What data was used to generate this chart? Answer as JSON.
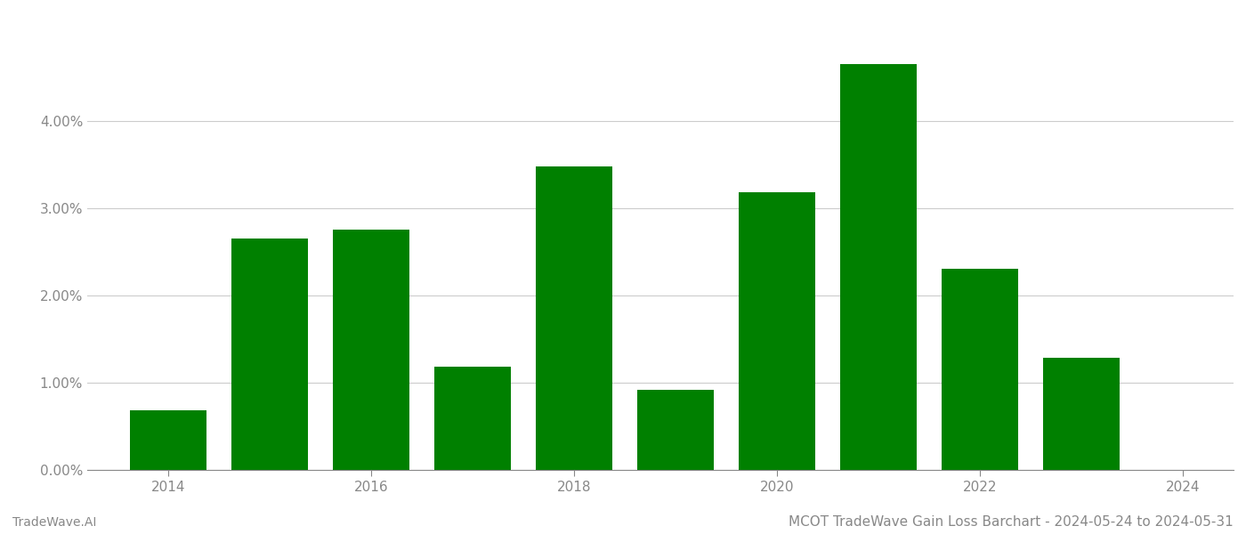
{
  "years": [
    2014,
    2015,
    2016,
    2017,
    2018,
    2019,
    2020,
    2021,
    2022,
    2023
  ],
  "values": [
    0.0068,
    0.0265,
    0.0275,
    0.0118,
    0.0348,
    0.0092,
    0.0318,
    0.0465,
    0.023,
    0.0128
  ],
  "bar_color": "#008000",
  "background_color": "#ffffff",
  "grid_color": "#cccccc",
  "title": "MCOT TradeWave Gain Loss Barchart - 2024-05-24 to 2024-05-31",
  "footer_left": "TradeWave.AI",
  "ylim_min": 0.0,
  "ylim_max": 0.052,
  "bar_width": 0.75,
  "ytick_values": [
    0.0,
    0.01,
    0.02,
    0.03,
    0.04
  ],
  "xtick_labels": [
    "2014",
    "2016",
    "2018",
    "2020",
    "2022",
    "2024"
  ],
  "xtick_values": [
    2014,
    2016,
    2018,
    2020,
    2022,
    2024
  ],
  "xlim_min": 2013.2,
  "xlim_max": 2024.5,
  "title_fontsize": 11,
  "footer_fontsize": 10,
  "axis_fontsize": 11,
  "tick_color": "#888888",
  "spine_color": "#888888"
}
